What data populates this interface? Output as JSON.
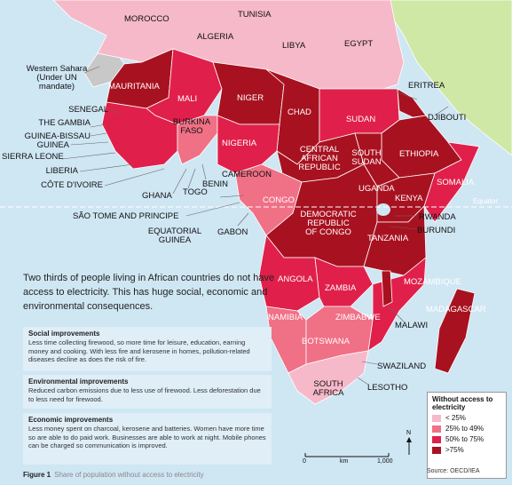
{
  "colors": {
    "lt25": "#f6b9c9",
    "r25_49": "#f07086",
    "r50_75": "#e0204a",
    "gt75": "#a81220",
    "no_data": "#c8c8c8",
    "outside": "#cfe8a6",
    "sea": "#cfe6f3"
  },
  "labels": {
    "morocco": "MOROCCO",
    "tunisia": "TUNISIA",
    "algeria": "ALGERIA",
    "libya": "LIBYA",
    "egypt": "EGYPT",
    "western_sahara": "Western Sahara\n(Under UN\nmandate)",
    "mauritania": "MAURITANIA",
    "mali": "MALI",
    "niger": "NIGER",
    "chad": "CHAD",
    "sudan": "SUDAN",
    "eritrea": "ERITREA",
    "djibouti": "DJIBOUTI",
    "senegal": "SENEGAL",
    "gambia": "THE GAMBIA",
    "guinea_bissau": "GUINEA-BISSAU",
    "guinea": "GUINEA",
    "sierra_leone": "SIERRA LEONE",
    "liberia": "LIBERIA",
    "cote_divoire": "CÔTE D'IVOIRE",
    "burkina_faso": "BURKINA\nFASO",
    "ghana": "GHANA",
    "togo": "TOGO",
    "benin": "BENIN",
    "nigeria": "NIGERIA",
    "cameroon": "CAMEROON",
    "car": "CENTRAL\nAFRICAN\nREPUBLIC",
    "south_sudan": "SOUTH\nSUDAN",
    "ethiopia": "ETHIOPIA",
    "somalia": "SOMALIA",
    "uganda": "UGANDA",
    "kenya": "KENYA",
    "equator": "Equator",
    "sao_tome": "SÃO TOME AND PRINCIPE",
    "congo": "CONGO",
    "drc": "DEMOCRATIC\nREPUBLIC\nOF CONGO",
    "rwanda": "RWANDA",
    "burundi": "BURUNDI",
    "eq_guinea": "EQUATORIAL\nGUINEA",
    "gabon": "GABON",
    "tanzania": "TANZANIA",
    "angola": "ANGOLA",
    "zambia": "ZAMBIA",
    "mozambique": "MOZAMBIQUE",
    "malawi": "MALAWI",
    "madagascar": "MADAGASCAR",
    "namibia": "NAMIBIA",
    "zimbabwe": "ZIMBABWE",
    "botswana": "BOTSWANA",
    "swaziland": "SWAZILAND",
    "south_africa": "SOUTH\nAFRICA",
    "lesotho": "LESOTHO"
  },
  "intro": "Two thirds of people living in African countries do not have access to electricity.  This has huge social, economic and environmental consequences.",
  "boxes": [
    {
      "title": "Social improvements",
      "body": "Less time collecting firewood, so more time for leisure, education, earning money and cooking. With less fire and kerosene in homes, pollution-related diseases decline as does the risk of fire."
    },
    {
      "title": "Environmental improvements",
      "body": "Reduced carbon emissions due to less use of firewood. Less deforestation due to less need for firewood."
    },
    {
      "title": "Economic improvements",
      "body": "Less money spent on charcoal, kerosene and batteries. Women have more time so are able to do paid work. Businesses are able to work at night. Mobile phones can be charged so communication is improved."
    }
  ],
  "legend": {
    "title": "Without access to electricity",
    "items": [
      {
        "label": "< 25%",
        "color": "#f6b9c9"
      },
      {
        "label": "25% to 49%",
        "color": "#f07086"
      },
      {
        "label": "50% to 75%",
        "color": "#e0204a"
      },
      {
        "label": ">75%",
        "color": "#a81220"
      }
    ]
  },
  "source": "Source: OECD/IEA",
  "scale": {
    "zero": "0",
    "unit": "km",
    "max": "1,000"
  },
  "north": "N",
  "figure": {
    "label": "Figure 1",
    "caption": "Share of population without access to electricity"
  }
}
